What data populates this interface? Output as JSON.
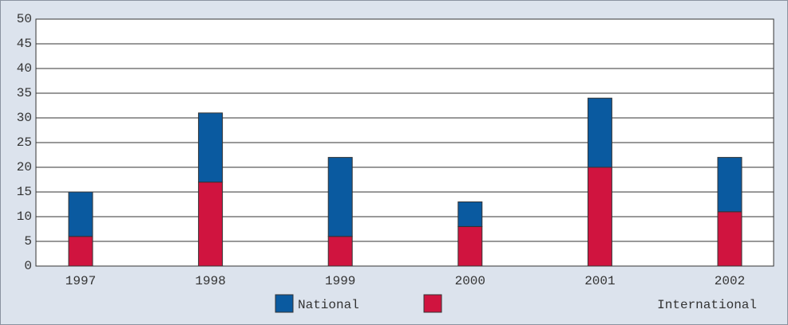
{
  "chart_data": {
    "type": "bar",
    "stacked": true,
    "categories": [
      "1997",
      "1998",
      "1999",
      "2000",
      "2001",
      "2002"
    ],
    "series": [
      {
        "name": "National",
        "color": "#0a5aa0",
        "values": [
          9,
          14,
          16,
          5,
          14,
          11
        ]
      },
      {
        "name": "International",
        "color": "#d0143f",
        "values": [
          6,
          17,
          6,
          8,
          20,
          11
        ]
      }
    ],
    "ylim": [
      0,
      50
    ],
    "yticks": [
      0,
      5,
      10,
      15,
      20,
      25,
      30,
      35,
      40,
      45,
      50
    ],
    "grid": true
  }
}
